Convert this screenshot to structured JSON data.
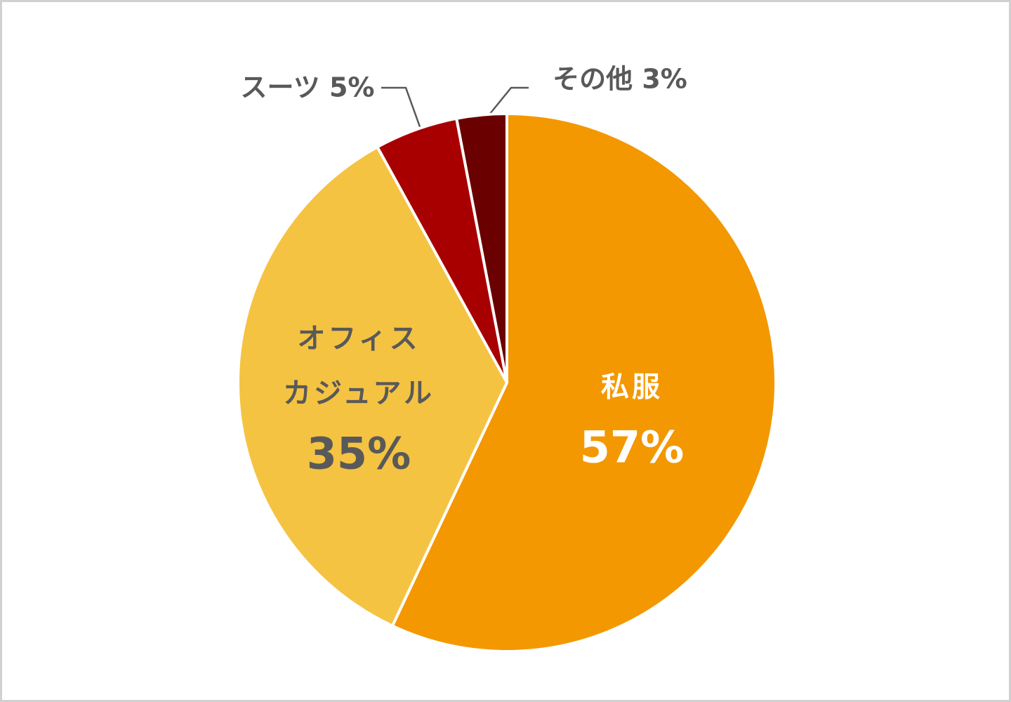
{
  "chart_data": {
    "type": "pie",
    "categories": [
      "私服",
      "オフィス\nカジュアル",
      "スーツ",
      "その他"
    ],
    "values": [
      57,
      35,
      5,
      3
    ],
    "value_labels": [
      "57%",
      "35%",
      "5%",
      "3%"
    ],
    "colors": [
      "#f39800",
      "#f5c342",
      "#a80000",
      "#6b0000"
    ]
  }
}
